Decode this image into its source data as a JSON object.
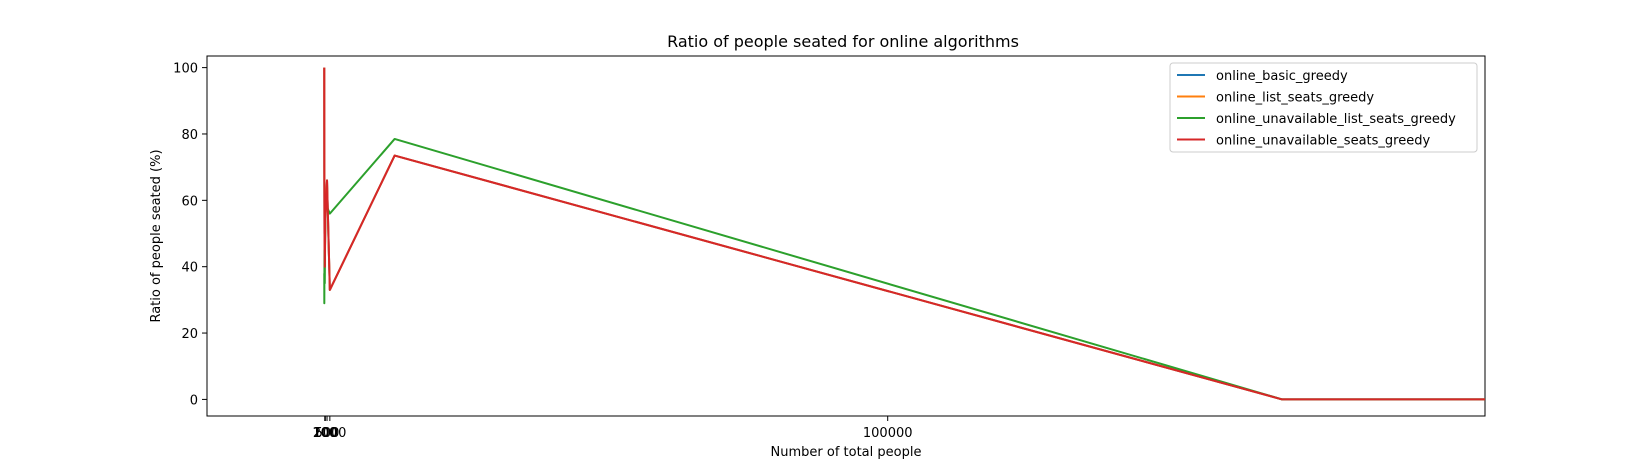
{
  "chart_data": {
    "type": "line",
    "title": "Ratio of people seated for online algorithms",
    "xlabel": "Number of total people",
    "ylabel": "Ratio of people seated (%)",
    "xlim": [
      -20800,
      206000
    ],
    "ylim": [
      -5,
      103.5
    ],
    "x_ticks": [
      100,
      200,
      500,
      1000,
      100000
    ],
    "x_tick_labels": [
      "100",
      "200",
      "500",
      "1000",
      "100000"
    ],
    "y_ticks": [
      0,
      20,
      40,
      60,
      80,
      100
    ],
    "y_tick_labels": [
      "0",
      "20",
      "40",
      "60",
      "80",
      "100"
    ],
    "legend_position": "top-right",
    "grid": false,
    "series": [
      {
        "name": "online_basic_greedy",
        "color": "#1f77b4",
        "x": [
          10,
          20,
          50,
          100,
          200,
          500,
          1000,
          12500,
          170000,
          206000
        ],
        "y": [
          100,
          70,
          50,
          40,
          55,
          66,
          33,
          73.5,
          0,
          0
        ]
      },
      {
        "name": "online_list_seats_greedy",
        "color": "#ff7f0e",
        "x": [
          10,
          20,
          50,
          100,
          200,
          500,
          1000,
          12500,
          170000,
          206000
        ],
        "y": [
          100,
          70,
          50,
          40,
          55,
          66,
          33,
          73.5,
          0,
          0
        ]
      },
      {
        "name": "online_unavailable_list_seats_greedy",
        "color": "#2ca02c",
        "x": [
          10,
          20,
          50,
          100,
          200,
          500,
          1000,
          12500,
          170000,
          206000
        ],
        "y": [
          38,
          29,
          45,
          35,
          57,
          58,
          56,
          78.5,
          0,
          0
        ]
      },
      {
        "name": "online_unavailable_seats_greedy",
        "color": "#d62728",
        "x": [
          10,
          20,
          50,
          100,
          200,
          500,
          1000,
          12500,
          170000,
          206000
        ],
        "y": [
          100,
          70,
          50,
          40,
          55,
          66,
          33,
          73.5,
          0,
          0
        ]
      }
    ]
  }
}
